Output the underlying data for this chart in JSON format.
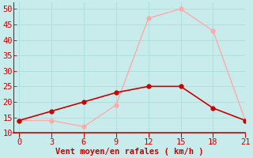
{
  "x": [
    0,
    3,
    6,
    9,
    12,
    15,
    18,
    21
  ],
  "y_moyen": [
    14,
    17,
    20,
    23,
    25,
    25,
    18,
    14
  ],
  "y_rafales": [
    14,
    14,
    12,
    19,
    47,
    50,
    43,
    14
  ],
  "color_moyen": "#cc0000",
  "color_rafales": "#ffaaaa",
  "xlabel": "Vent moyen/en rafales ( km/h )",
  "ylim": [
    10,
    52
  ],
  "xlim": [
    -0.5,
    21
  ],
  "yticks": [
    10,
    15,
    20,
    25,
    30,
    35,
    40,
    45,
    50
  ],
  "xticks": [
    0,
    3,
    6,
    9,
    12,
    15,
    18,
    21
  ],
  "bg_color": "#c8ecec",
  "grid_color": "#aadddd",
  "tick_color": "#cc0000",
  "label_fontsize": 7.5,
  "marker_size": 3.5
}
